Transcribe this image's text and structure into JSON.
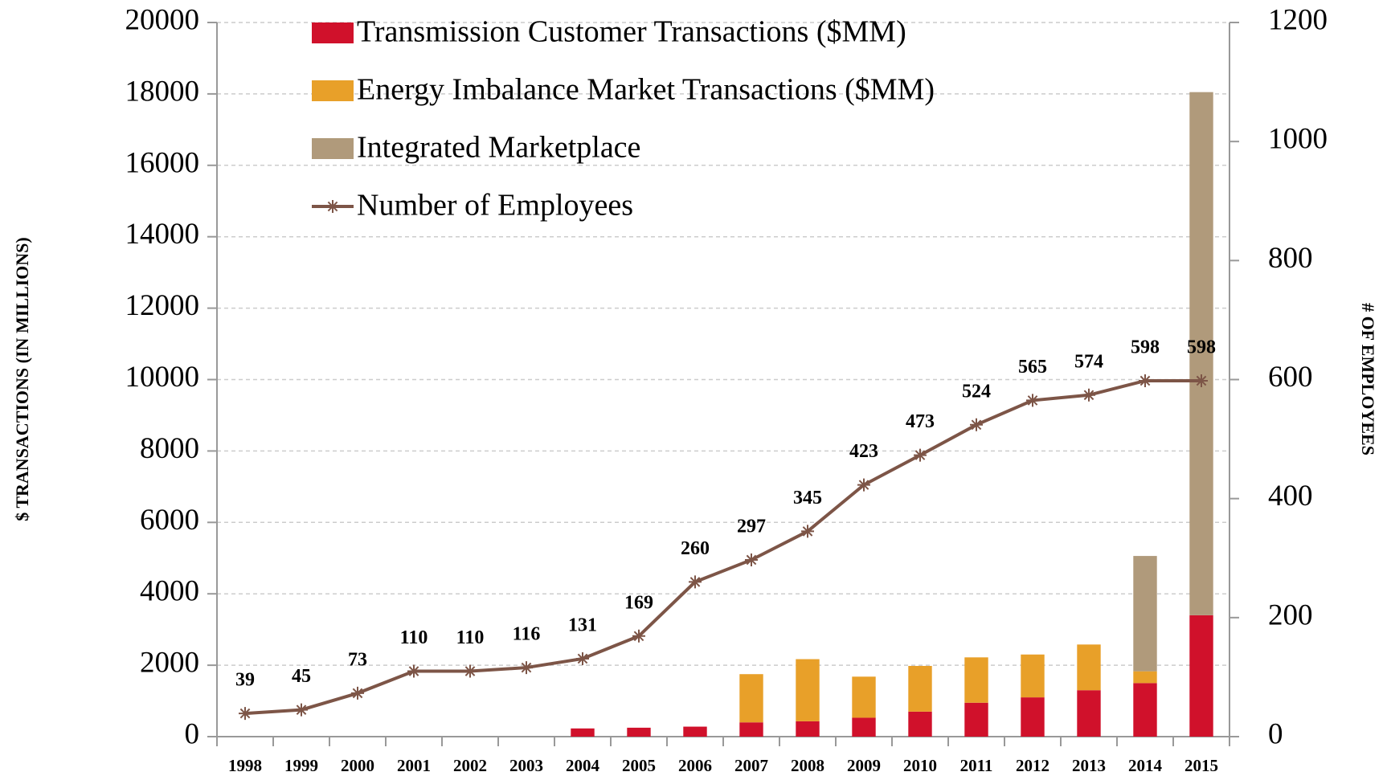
{
  "chart_data": {
    "type": "bar",
    "y_label": "$ TRANSACTIONS (IN MILLIONS)",
    "y2_label": "# OF EMPLOYEES",
    "categories": [
      "1998",
      "1999",
      "2000",
      "2001",
      "2002",
      "2003",
      "2004",
      "2005",
      "2006",
      "2007",
      "2008",
      "2009",
      "2010",
      "2011",
      "2012",
      "2013",
      "2014",
      "2015"
    ],
    "series": [
      {
        "name": "Transmission Customer Transactions ($MM)",
        "type": "bar",
        "color": "#d0112b",
        "values": [
          null,
          null,
          null,
          null,
          null,
          null,
          230,
          250,
          280,
          400,
          430,
          530,
          700,
          950,
          1100,
          1300,
          1500,
          3400
        ]
      },
      {
        "name": "Energy Imbalance Market Transactions ($MM)",
        "type": "bar",
        "color": "#e8a029",
        "values": [
          null,
          null,
          null,
          null,
          null,
          null,
          null,
          null,
          null,
          1350,
          1740,
          1150,
          1280,
          1270,
          1200,
          1280,
          330,
          null
        ]
      },
      {
        "name": "Integrated Marketplace",
        "type": "bar",
        "color": "#b09a7b",
        "values": [
          null,
          null,
          null,
          null,
          null,
          null,
          null,
          null,
          null,
          null,
          null,
          null,
          null,
          null,
          null,
          null,
          3230,
          14650
        ]
      },
      {
        "name": "Number of Employees",
        "type": "line",
        "axis": "y2",
        "color": "#7d5547",
        "values": [
          39,
          45,
          73,
          110,
          110,
          116,
          131,
          169,
          260,
          297,
          345,
          423,
          473,
          524,
          565,
          574,
          598,
          598
        ]
      }
    ],
    "ylim": [
      0,
      20000
    ],
    "yticks": [
      0,
      2000,
      4000,
      6000,
      8000,
      10000,
      12000,
      14000,
      16000,
      18000,
      20000
    ],
    "y2lim": [
      0,
      1200
    ],
    "y2ticks": [
      0,
      200,
      400,
      600,
      800,
      1000,
      1200
    ],
    "grid": true,
    "stacked": true,
    "legend": "top-left"
  }
}
